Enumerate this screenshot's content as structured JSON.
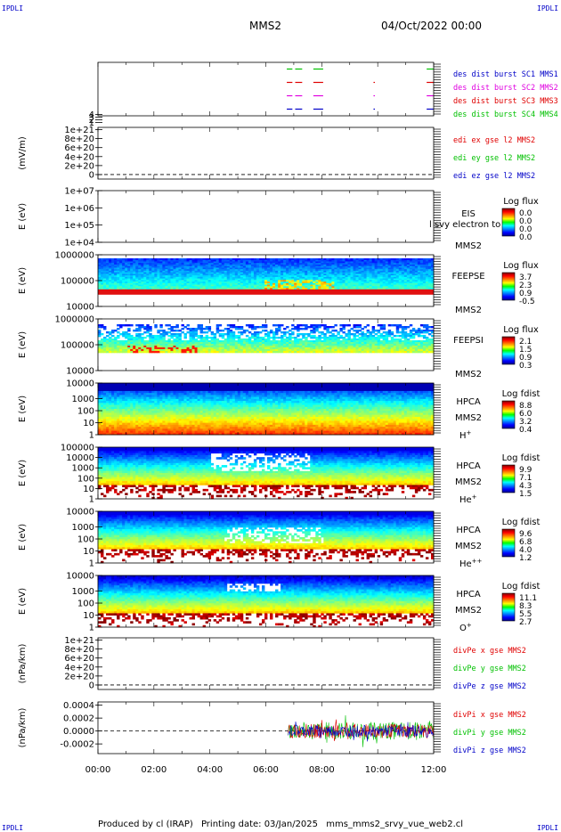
{
  "corner_marks": [
    "IPDLI",
    "IPDLI",
    "IPDLI",
    "IPDLI"
  ],
  "header": {
    "title": "MMS2",
    "date": "04/Oct/2022 00:00"
  },
  "footer": {
    "produced_by": "Produced by cl (IRAP)",
    "printing_date": "Printing date: 03/Jan/2025",
    "filename": "mms_mms2_srvy_vue_web2.cl"
  },
  "chart_data": [
    {
      "type": "line",
      "panel": "burst",
      "ylabel": "",
      "yticks": [
        "1",
        "2",
        "3",
        "4"
      ],
      "ylim": [
        0.5,
        4.5
      ],
      "legend": [
        {
          "text": "des dist burst SC1 MMS1",
          "color": "#0000c8"
        },
        {
          "text": "des dist burst SC2 MMS2",
          "color": "#e000e0"
        },
        {
          "text": "des dist burst SC3 MMS3",
          "color": "#e00000"
        },
        {
          "text": "des dist burst SC4 MMS4",
          "color": "#00c000"
        }
      ],
      "series": [
        {
          "name": "SC1",
          "level": 1,
          "color": "#0000c8",
          "segments": [
            [
              6.75,
              6.95
            ],
            [
              7.05,
              7.3
            ],
            [
              7.7,
              8.05
            ],
            [
              9.85,
              9.9
            ],
            [
              11.75,
              12.0
            ]
          ]
        },
        {
          "name": "SC2",
          "level": 2,
          "color": "#e000e0",
          "segments": [
            [
              6.75,
              6.95
            ],
            [
              7.05,
              7.3
            ],
            [
              7.7,
              8.05
            ],
            [
              9.85,
              9.9
            ],
            [
              11.75,
              12.0
            ]
          ]
        },
        {
          "name": "SC3",
          "level": 3,
          "color": "#e00000",
          "segments": [
            [
              6.75,
              6.95
            ],
            [
              7.05,
              7.3
            ],
            [
              7.7,
              8.05
            ],
            [
              9.85,
              9.9
            ],
            [
              11.75,
              12.0
            ]
          ]
        },
        {
          "name": "SC4",
          "level": 4,
          "color": "#00c000",
          "segments": [
            [
              6.75,
              6.95
            ],
            [
              7.05,
              7.3
            ],
            [
              7.7,
              8.05
            ],
            [
              11.75,
              12.0
            ]
          ]
        }
      ]
    },
    {
      "type": "line",
      "panel": "edi",
      "ylabel": "(mV/m)",
      "yticks": [
        "0",
        "2e+20",
        "4e+20",
        "6e+20",
        "8e+20",
        "1e+21"
      ],
      "ylim": [
        -0.1,
        1.05
      ],
      "dashed_zero": true,
      "legend": [
        {
          "text": "edi ex gse l2 MMS2",
          "color": "#e00000"
        },
        {
          "text": "edi ey gse l2 MMS2",
          "color": "#00c000"
        },
        {
          "text": "edi ez gse l2 MMS2",
          "color": "#0000c8"
        }
      ]
    },
    {
      "type": "heatmap",
      "panel": "eis",
      "ylabel": "E (eV)",
      "yticks": [
        "1e+04",
        "1e+05",
        "1e+06",
        "1e+07"
      ],
      "log_range": [
        4,
        7
      ],
      "inst": [
        "EIS",
        "MMS2"
      ],
      "overlay_text": "l svy electron to",
      "colorbar": {
        "title": "Log flux",
        "labels": [
          "0.0",
          "0.0",
          "0.0",
          "0.0"
        ]
      },
      "empty": true
    },
    {
      "type": "heatmap",
      "panel": "feepse",
      "ylabel": "E (eV)",
      "yticks": [
        "10000",
        "100000",
        "1000000"
      ],
      "log_range": [
        4,
        6
      ],
      "inst": [
        "FEEPSE",
        "MMS2"
      ],
      "colorbar": {
        "title": "Log flux",
        "labels": [
          "3.7",
          "2.3",
          "0.9",
          "-0.5"
        ]
      }
    },
    {
      "type": "heatmap",
      "panel": "feepsi",
      "ylabel": "E (eV)",
      "yticks": [
        "10000",
        "100000",
        "1000000"
      ],
      "log_range": [
        4,
        6
      ],
      "inst": [
        "FEEPSI",
        "MMS2"
      ],
      "colorbar": {
        "title": "Log flux",
        "labels": [
          "2.1",
          "1.5",
          "0.9",
          "0.3"
        ]
      }
    },
    {
      "type": "heatmap",
      "panel": "hpca_h",
      "ylabel": "E (eV)",
      "yticks": [
        "1",
        "10",
        "100",
        "1000",
        "10000"
      ],
      "log_range": [
        0,
        4.3
      ],
      "inst": [
        "HPCA",
        "MMS2"
      ],
      "species": {
        "base": "H",
        "sup": "+"
      },
      "colorbar": {
        "title": "Log fdist",
        "labels": [
          "8.8",
          "6.0",
          "3.2",
          "0.4"
        ]
      }
    },
    {
      "type": "heatmap",
      "panel": "hpca_he",
      "ylabel": "E (eV)",
      "yticks": [
        "1",
        "10",
        "100",
        "1000",
        "10000",
        "100000"
      ],
      "log_range": [
        0,
        5
      ],
      "inst": [
        "HPCA",
        "MMS2"
      ],
      "species": {
        "base": "He",
        "sup": "+"
      },
      "colorbar": {
        "title": "Log fdist",
        "labels": [
          "9.9",
          "7.1",
          "4.3",
          "1.5"
        ]
      }
    },
    {
      "type": "heatmap",
      "panel": "hpca_hepp",
      "ylabel": "E (eV)",
      "yticks": [
        "1",
        "10",
        "100",
        "1000",
        "10000"
      ],
      "log_range": [
        0,
        4.3
      ],
      "inst": [
        "HPCA",
        "MMS2"
      ],
      "species": {
        "base": "He",
        "sup": "++"
      },
      "colorbar": {
        "title": "Log fdist",
        "labels": [
          "9.6",
          "6.8",
          "4.0",
          "1.2"
        ]
      }
    },
    {
      "type": "heatmap",
      "panel": "hpca_o",
      "ylabel": "E (eV)",
      "yticks": [
        "1",
        "10",
        "100",
        "1000",
        "10000"
      ],
      "log_range": [
        0,
        4.3
      ],
      "inst": [
        "HPCA",
        "MMS2"
      ],
      "species": {
        "base": "O",
        "sup": "+"
      },
      "colorbar": {
        "title": "Log fdist",
        "labels": [
          "11.1",
          "8.3",
          "5.5",
          "2.7"
        ]
      }
    },
    {
      "type": "line",
      "panel": "divpe",
      "ylabel": "(nPa/km)",
      "yticks": [
        "0",
        "2e+20",
        "4e+20",
        "6e+20",
        "8e+20",
        "1e+21"
      ],
      "ylim": [
        -0.1,
        1.05
      ],
      "dashed_zero": true,
      "legend": [
        {
          "text": "divPe x gse MMS2",
          "color": "#e00000"
        },
        {
          "text": "divPe y gse MMS2",
          "color": "#00c000"
        },
        {
          "text": "divPe z gse MMS2",
          "color": "#0000c8"
        }
      ]
    },
    {
      "type": "line",
      "panel": "divpi",
      "ylabel": "(nPa/km)",
      "yticks": [
        "-0.0002",
        "0.0000",
        "0.0002",
        "0.0004"
      ],
      "ylim": [
        -0.00035,
        0.00045
      ],
      "dashed_zero": true,
      "data_start": 6.8,
      "legend": [
        {
          "text": "divPi x gse MMS2",
          "color": "#e00000"
        },
        {
          "text": "divPi y gse MMS2",
          "color": "#00c000"
        },
        {
          "text": "divPi z gse MMS2",
          "color": "#0000c8"
        }
      ]
    }
  ],
  "x_axis": {
    "ticks": [
      "00:00",
      "02:00",
      "04:00",
      "06:00",
      "08:00",
      "10:00",
      "12:00"
    ],
    "range_hours": [
      0,
      12
    ]
  }
}
